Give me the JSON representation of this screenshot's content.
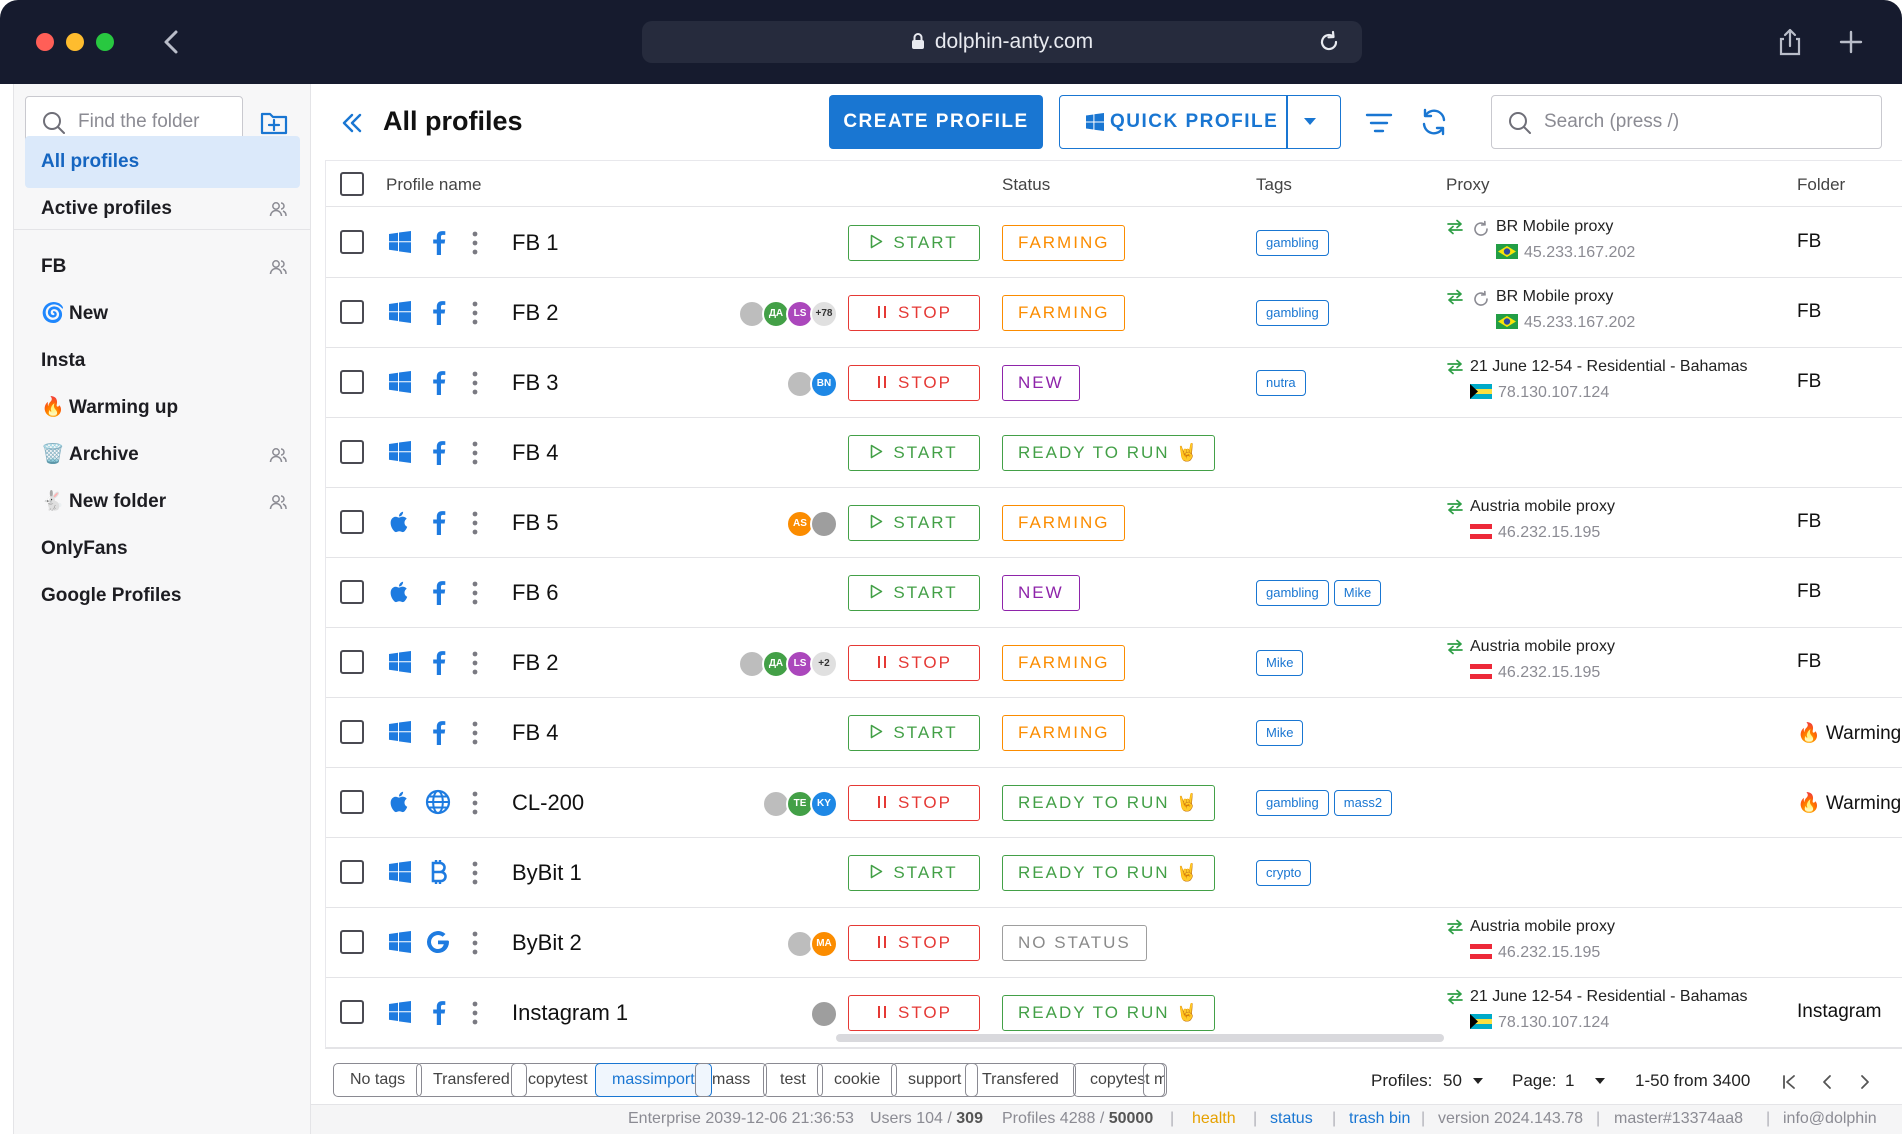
{
  "browser": {
    "url": "dolphin-anty.com"
  },
  "sidebar": {
    "find_placeholder": "Find the folder",
    "items": [
      {
        "label": "All profiles",
        "active": true,
        "icon": "",
        "shared": false
      },
      {
        "label": "Active profiles",
        "icon": "",
        "shared": true
      },
      {
        "label": "FB",
        "icon": "",
        "shared": true
      },
      {
        "label": "New",
        "icon": "🌀",
        "shared": false
      },
      {
        "label": "Insta",
        "icon": "",
        "shared": false
      },
      {
        "label": "Warming up",
        "icon": "🔥",
        "shared": false
      },
      {
        "label": "Archive",
        "icon": "🗑️",
        "shared": true
      },
      {
        "label": "New folder",
        "icon": "🐇",
        "shared": true
      },
      {
        "label": "OnlyFans",
        "icon": "",
        "shared": false
      },
      {
        "label": "Google Profiles",
        "icon": "",
        "shared": false
      }
    ]
  },
  "header": {
    "title": "All profiles",
    "create_label": "CREATE PROFILE",
    "quick_label": "QUICK PROFILE",
    "search_placeholder": "Search (press /)"
  },
  "table": {
    "columns": {
      "name": "Profile name",
      "status": "Status",
      "tags": "Tags",
      "proxy": "Proxy",
      "folder": "Folder"
    },
    "rows": [
      {
        "os": "windows",
        "browser": "facebook",
        "name": "FB 1",
        "avatars": [],
        "action": "START",
        "status": "FARMING",
        "tags": [
          "gambling"
        ],
        "proxy": {
          "name": "BR Mobile proxy",
          "ip": "45.233.167.202",
          "flag": "br",
          "rotating": true
        },
        "folder": "FB"
      },
      {
        "os": "windows",
        "browser": "facebook",
        "name": "FB 2",
        "avatars": [
          {
            "t": "",
            "c": "#bdbdbd"
          },
          {
            "t": "ДА",
            "c": "#43a047"
          },
          {
            "t": "LS",
            "c": "#ab47bc"
          },
          {
            "t": "+78",
            "c": "#e0e0e0"
          }
        ],
        "action": "STOP",
        "status": "FARMING",
        "tags": [
          "gambling"
        ],
        "proxy": {
          "name": "BR Mobile proxy",
          "ip": "45.233.167.202",
          "flag": "br",
          "rotating": true
        },
        "folder": "FB"
      },
      {
        "os": "windows",
        "browser": "facebook",
        "name": "FB 3",
        "avatars": [
          {
            "t": "",
            "c": "#bdbdbd"
          },
          {
            "t": "BN",
            "c": "#1e88e5"
          }
        ],
        "action": "STOP",
        "status": "NEW",
        "tags": [
          "nutra"
        ],
        "proxy": {
          "name": "21 June 12-54 - Residential - Bahamas",
          "ip": "78.130.107.124",
          "flag": "bs",
          "rotating": false
        },
        "folder": "FB"
      },
      {
        "os": "windows",
        "browser": "facebook",
        "name": "FB 4",
        "avatars": [],
        "action": "START",
        "status": "READY TO RUN 🤘",
        "tags": [],
        "proxy": null,
        "folder": ""
      },
      {
        "os": "apple",
        "browser": "facebook",
        "name": "FB 5",
        "avatars": [
          {
            "t": "AS",
            "c": "#fb8c00"
          },
          {
            "t": "",
            "c": "#9e9e9e"
          }
        ],
        "action": "START",
        "status": "FARMING",
        "tags": [],
        "proxy": {
          "name": "Austria mobile proxy",
          "ip": "46.232.15.195",
          "flag": "at",
          "rotating": false
        },
        "folder": "FB"
      },
      {
        "os": "apple",
        "browser": "facebook",
        "name": "FB 6",
        "avatars": [],
        "action": "START",
        "status": "NEW",
        "tags": [
          "gambling",
          "Mike"
        ],
        "proxy": null,
        "folder": "FB"
      },
      {
        "os": "windows",
        "browser": "facebook",
        "name": "FB 2",
        "avatars": [
          {
            "t": "",
            "c": "#bdbdbd"
          },
          {
            "t": "ДА",
            "c": "#43a047"
          },
          {
            "t": "LS",
            "c": "#ab47bc"
          },
          {
            "t": "+2",
            "c": "#e0e0e0"
          }
        ],
        "action": "STOP",
        "status": "FARMING",
        "tags": [
          "Mike"
        ],
        "proxy": {
          "name": "Austria mobile proxy",
          "ip": "46.232.15.195",
          "flag": "at",
          "rotating": false
        },
        "folder": "FB"
      },
      {
        "os": "windows",
        "browser": "facebook",
        "name": "FB 4",
        "avatars": [],
        "action": "START",
        "status": "FARMING",
        "tags": [
          "Mike"
        ],
        "proxy": null,
        "folder": "🔥 Warming"
      },
      {
        "os": "apple",
        "browser": "globe",
        "name": "CL-200",
        "avatars": [
          {
            "t": "",
            "c": "#bdbdbd"
          },
          {
            "t": "TE",
            "c": "#43a047"
          },
          {
            "t": "KY",
            "c": "#1e88e5"
          }
        ],
        "action": "STOP",
        "status": "READY TO RUN 🤘",
        "tags": [
          "gambling",
          "mass2"
        ],
        "proxy": null,
        "folder": "🔥 Warming"
      },
      {
        "os": "windows",
        "browser": "bitcoin",
        "name": "ByBit 1",
        "avatars": [],
        "action": "START",
        "status": "READY TO RUN 🤘",
        "tags": [
          "crypto"
        ],
        "proxy": null,
        "folder": ""
      },
      {
        "os": "windows",
        "browser": "google",
        "name": "ByBit 2",
        "avatars": [
          {
            "t": "",
            "c": "#bdbdbd"
          },
          {
            "t": "MA",
            "c": "#fb8c00"
          }
        ],
        "action": "STOP",
        "status": "NO STATUS",
        "tags": [],
        "proxy": {
          "name": "Austria mobile proxy",
          "ip": "46.232.15.195",
          "flag": "at",
          "rotating": false
        },
        "folder": ""
      },
      {
        "os": "windows",
        "browser": "facebook",
        "name": "Instagram 1",
        "avatars": [
          {
            "t": "",
            "c": "#9e9e9e"
          }
        ],
        "action": "STOP",
        "status": "READY TO RUN 🤘",
        "tags": [],
        "proxy": {
          "name": "21 June 12-54 - Residential - Bahamas",
          "ip": "78.130.107.124",
          "flag": "bs",
          "rotating": false
        },
        "folder": "Instagram"
      }
    ]
  },
  "tag_chips": [
    "No tags",
    "Transfered",
    "copytest",
    "massimport",
    "mass",
    "test",
    "cookie",
    "support",
    "Transfered",
    "copytest",
    "m"
  ],
  "selected_chip": "massimport",
  "pagination": {
    "profiles_label": "Profiles:",
    "profiles_value": "50",
    "page_label": "Page:",
    "page_value": "1",
    "range": "1-50 from 3400"
  },
  "footer": {
    "enterprise": "Enterprise 2039-12-06 21:36:53",
    "users_label": "Users 104 / ",
    "users_max": "309",
    "profiles_label": "Profiles 4288 / ",
    "profiles_max": "50000",
    "health": "health",
    "status": "status",
    "trash": "trash bin",
    "version": "version 2024.143.78",
    "master": "master#13374aa8",
    "info": "info@dolphin"
  }
}
